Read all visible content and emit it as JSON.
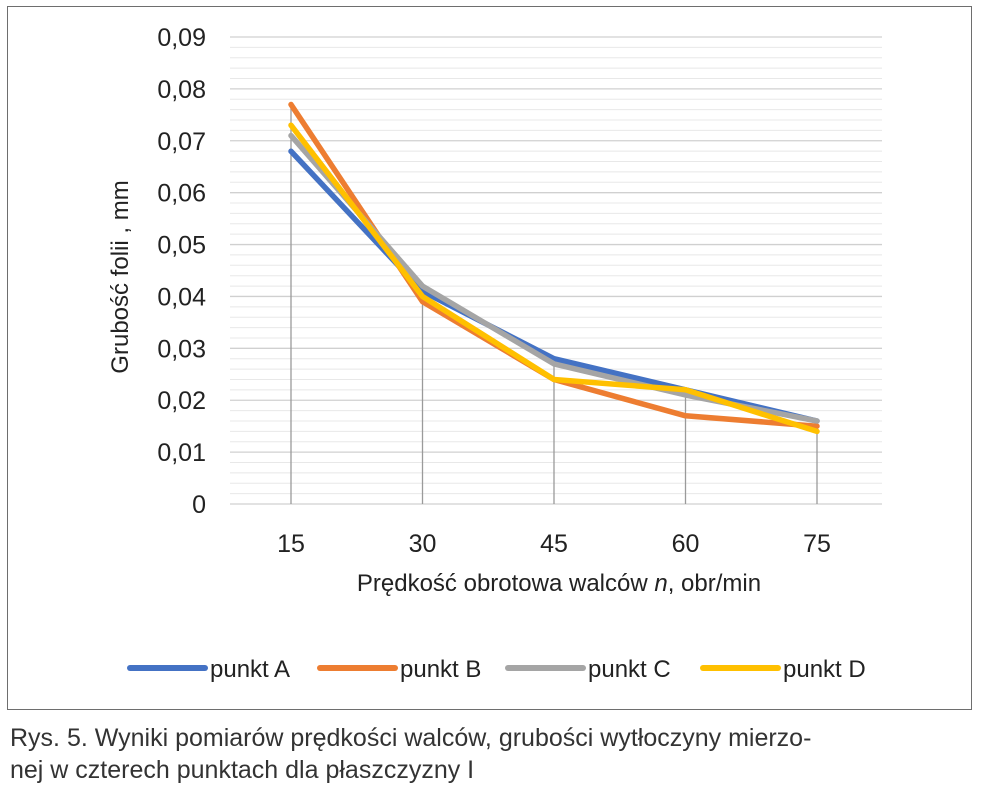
{
  "chart_data": {
    "type": "line",
    "x": [
      15,
      30,
      45,
      60,
      75
    ],
    "xticks": [
      "15",
      "30",
      "45",
      "60",
      "75"
    ],
    "yticks": [
      "0",
      "0,01",
      "0,02",
      "0,03",
      "0,04",
      "0,05",
      "0,06",
      "0,07",
      "0,08",
      "0,09"
    ],
    "ylim": [
      0,
      0.09
    ],
    "xlabel_pre": "Prędkość obrotowa walców ",
    "xlabel_var": "n",
    "xlabel_post": ", obr/min",
    "ylabel": "Grubość folii , mm",
    "grid": "horizontal",
    "legend_position": "bottom",
    "series": [
      {
        "name": "punkt A",
        "values": [
          0.068,
          0.041,
          0.028,
          0.022,
          0.016
        ],
        "color": "#4472C4"
      },
      {
        "name": "punkt B",
        "values": [
          0.077,
          0.039,
          0.024,
          0.017,
          0.015
        ],
        "color": "#ED7D31"
      },
      {
        "name": "punkt C",
        "values": [
          0.071,
          0.042,
          0.027,
          0.021,
          0.016
        ],
        "color": "#A5A5A5"
      },
      {
        "name": "punkt D",
        "values": [
          0.073,
          0.04,
          0.024,
          0.022,
          0.014
        ],
        "color": "#FFC000"
      }
    ]
  },
  "caption": {
    "line1": "Rys. 5. Wyniki pomiarów prędkości walców, grubości wytłoczyny mierzo-",
    "line2": "nej w czterech punktach dla płaszczyzny I"
  }
}
